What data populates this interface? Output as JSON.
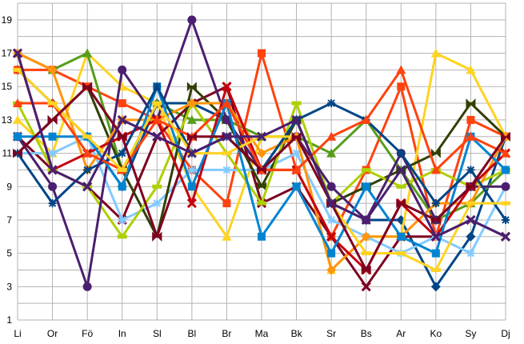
{
  "chart_data": {
    "type": "line",
    "title": "",
    "xlabel": "",
    "ylabel": "",
    "categories": [
      "Li",
      "Or",
      "Fö",
      "In",
      "Sl",
      "Bl",
      "Br",
      "Ma",
      "Bk",
      "Sr",
      "Bs",
      "Ar",
      "Ko",
      "Sy",
      "Dj"
    ],
    "y_ticks": [
      1,
      3,
      5,
      7,
      9,
      11,
      13,
      15,
      17,
      19
    ],
    "ylim": [
      1,
      20
    ],
    "grid": true,
    "legend": "none",
    "series": [
      {
        "color": "#004586",
        "marker": "diamond",
        "values": [
          16,
          14,
          12,
          9,
          14,
          14,
          13,
          10,
          13,
          8,
          7,
          7,
          3,
          6,
          12
        ]
      },
      {
        "color": "#ff420e",
        "marker": "square",
        "values": [
          16,
          16,
          15,
          14,
          13,
          10,
          8,
          17,
          10,
          6,
          10,
          15,
          6,
          13,
          12
        ]
      },
      {
        "color": "#ffd320",
        "marker": "triangle",
        "values": [
          13,
          11,
          17,
          15,
          14,
          9,
          6,
          12,
          12,
          4,
          6,
          6,
          17,
          16,
          12
        ]
      },
      {
        "color": "#579d1c",
        "marker": "triangle",
        "values": [
          17,
          16,
          17,
          10,
          14,
          13,
          13,
          12,
          12,
          11,
          13,
          10,
          7,
          8,
          10
        ]
      },
      {
        "color": "#7e0021",
        "marker": "x",
        "values": [
          12,
          10,
          9,
          7,
          12,
          14,
          15,
          8,
          9,
          6,
          3,
          6,
          6,
          7,
          6
        ]
      },
      {
        "color": "#83caff",
        "marker": "star",
        "values": [
          11,
          11,
          12,
          7,
          8,
          10,
          10,
          10,
          11,
          7,
          6,
          5,
          6,
          5,
          9
        ]
      },
      {
        "color": "#314004",
        "marker": "bowtie",
        "values": [
          11,
          13,
          15,
          10,
          6,
          15,
          13,
          9,
          13,
          8,
          9,
          10,
          11,
          14,
          12
        ]
      },
      {
        "color": "#aecf00",
        "marker": "bar",
        "values": [
          14,
          10,
          9,
          6,
          9,
          14,
          11,
          8,
          14,
          8,
          10,
          9,
          10,
          9,
          10
        ]
      },
      {
        "color": "#4b1f6f",
        "marker": "circle",
        "values": [
          12,
          9,
          3,
          16,
          13,
          19,
          13,
          10,
          12,
          9,
          7,
          11,
          7,
          9,
          9
        ]
      },
      {
        "color": "#ff950e",
        "marker": "diamond",
        "values": [
          17,
          16,
          10,
          13,
          13,
          14,
          14,
          11,
          12,
          4,
          6,
          6,
          8,
          8,
          12
        ]
      },
      {
        "color": "#c5000b",
        "marker": "x",
        "values": [
          17,
          10,
          11,
          12,
          13,
          8,
          15,
          10,
          10,
          6,
          4,
          8,
          6,
          9,
          11
        ]
      },
      {
        "color": "#0084d1",
        "marker": "square",
        "values": [
          12,
          12,
          12,
          9,
          15,
          9,
          14,
          6,
          9,
          5,
          9,
          6,
          5,
          12,
          10
        ]
      },
      {
        "color": "#004586",
        "marker": "star",
        "values": [
          11,
          8,
          10,
          11,
          15,
          11,
          12,
          10,
          13,
          14,
          13,
          11,
          8,
          10,
          7
        ]
      },
      {
        "color": "#ff420e",
        "marker": "triangle",
        "values": [
          14,
          14,
          11,
          10,
          13,
          12,
          14,
          10,
          10,
          12,
          13,
          16,
          10,
          12,
          11
        ]
      },
      {
        "color": "#ffd320",
        "marker": "bar",
        "values": [
          16,
          14,
          12,
          10,
          14,
          11,
          11,
          12,
          12,
          8,
          5,
          5,
          4,
          8,
          8
        ]
      },
      {
        "color": "#7e0021",
        "marker": "bowtie",
        "values": [
          11,
          13,
          15,
          12,
          6,
          12,
          12,
          10,
          12,
          8,
          4,
          8,
          7,
          9,
          12
        ]
      },
      {
        "color": "#4b1f6f",
        "marker": "x",
        "values": [
          17,
          10,
          9,
          13,
          12,
          11,
          12,
          12,
          13,
          8,
          7,
          10,
          6,
          7,
          6
        ]
      }
    ]
  }
}
